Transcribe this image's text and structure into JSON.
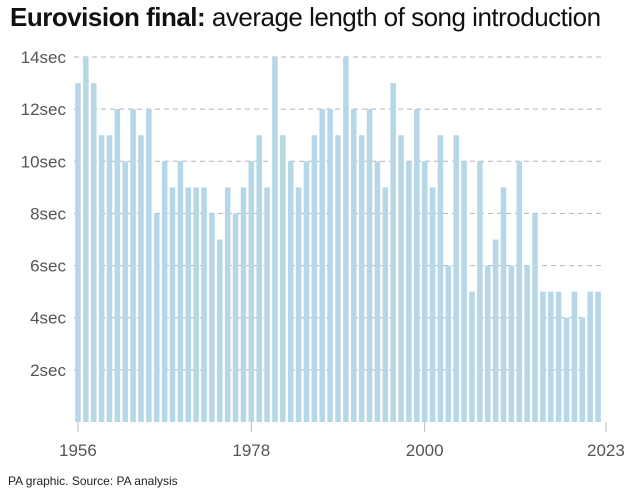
{
  "chart_data": {
    "type": "bar",
    "title_bold": "Eurovision final:",
    "title_rest": "average length of song introduction",
    "source": "PA graphic. Source: PA analysis",
    "unit_suffix": "sec",
    "x_start": 1956,
    "x_end": 2023,
    "x_ticks": [
      "1956",
      "1978",
      "2000",
      "2023"
    ],
    "y_ticks": [
      2,
      4,
      6,
      8,
      10,
      12,
      14
    ],
    "ylim": [
      0,
      14
    ],
    "grid": true,
    "bar_color": "#b5d7e8",
    "grid_color": "#b3b3b3",
    "values": [
      13,
      14,
      13,
      11,
      11,
      12,
      10,
      12,
      11,
      12,
      8,
      10,
      9,
      10,
      9,
      9,
      9,
      8,
      7,
      9,
      8,
      9,
      10,
      11,
      9,
      14,
      11,
      10,
      9,
      10,
      11,
      12,
      12,
      11,
      14,
      12,
      11,
      12,
      10,
      9,
      13,
      11,
      10,
      12,
      10,
      9,
      11,
      6,
      11,
      10,
      5,
      10,
      6,
      7,
      9,
      6,
      10,
      6,
      8,
      5,
      5,
      5,
      4,
      5,
      4,
      5,
      5
    ]
  }
}
